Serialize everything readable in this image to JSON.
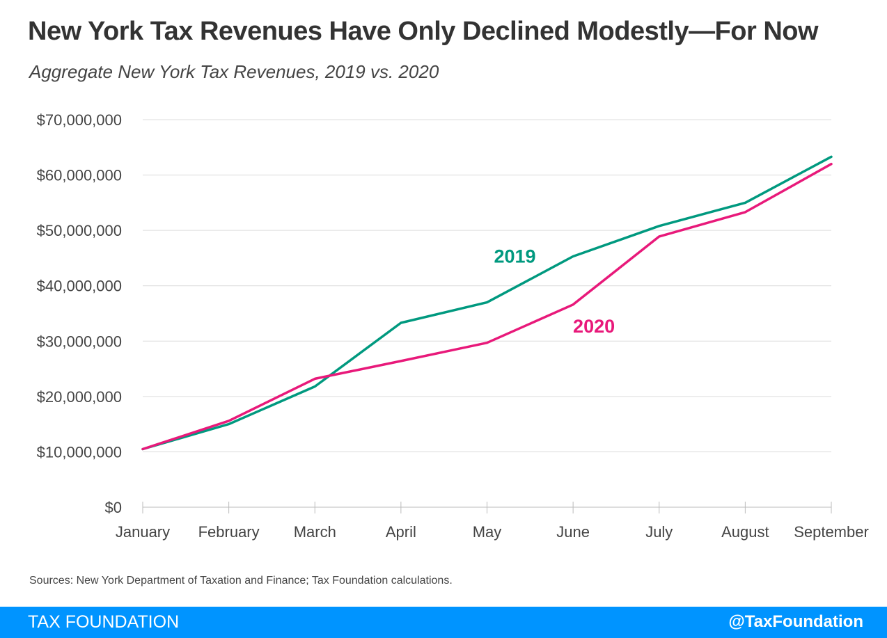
{
  "header": {
    "title": "New York Tax Revenues Have Only Declined Modestly—For Now",
    "subtitle": "Aggregate New York Tax Revenues, 2019 vs. 2020"
  },
  "source": "Sources: New York Department of Taxation and Finance; Tax Foundation calculations.",
  "footer": {
    "brand": "TAX FOUNDATION",
    "handle": "@TaxFoundation"
  },
  "colors": {
    "series_2019": "#00997f",
    "series_2020": "#e8197a",
    "footer_bg": "#0094ff"
  },
  "chart_data": {
    "type": "line",
    "title": "New York Tax Revenues Have Only Declined Modestly—For Now",
    "subtitle": "Aggregate New York Tax Revenues, 2019 vs. 2020",
    "categories": [
      "January",
      "February",
      "March",
      "April",
      "May",
      "June",
      "July",
      "August",
      "September"
    ],
    "ylim": [
      0,
      70000000
    ],
    "yticks": [
      0,
      10000000,
      20000000,
      30000000,
      40000000,
      50000000,
      60000000,
      70000000
    ],
    "ytick_labels": [
      "$0",
      "$10,000,000",
      "$20,000,000",
      "$30,000,000",
      "$40,000,000",
      "$50,000,000",
      "$60,000,000",
      "$70,000,000"
    ],
    "grid": true,
    "series": [
      {
        "name": "2019",
        "color": "#00997f",
        "values": [
          10500000,
          15000000,
          21800000,
          33300000,
          37000000,
          45300000,
          50800000,
          55000000,
          63300000
        ]
      },
      {
        "name": "2020",
        "color": "#e8197a",
        "values": [
          10500000,
          15600000,
          23200000,
          26400000,
          29700000,
          36600000,
          48900000,
          53300000,
          62000000
        ]
      }
    ]
  }
}
